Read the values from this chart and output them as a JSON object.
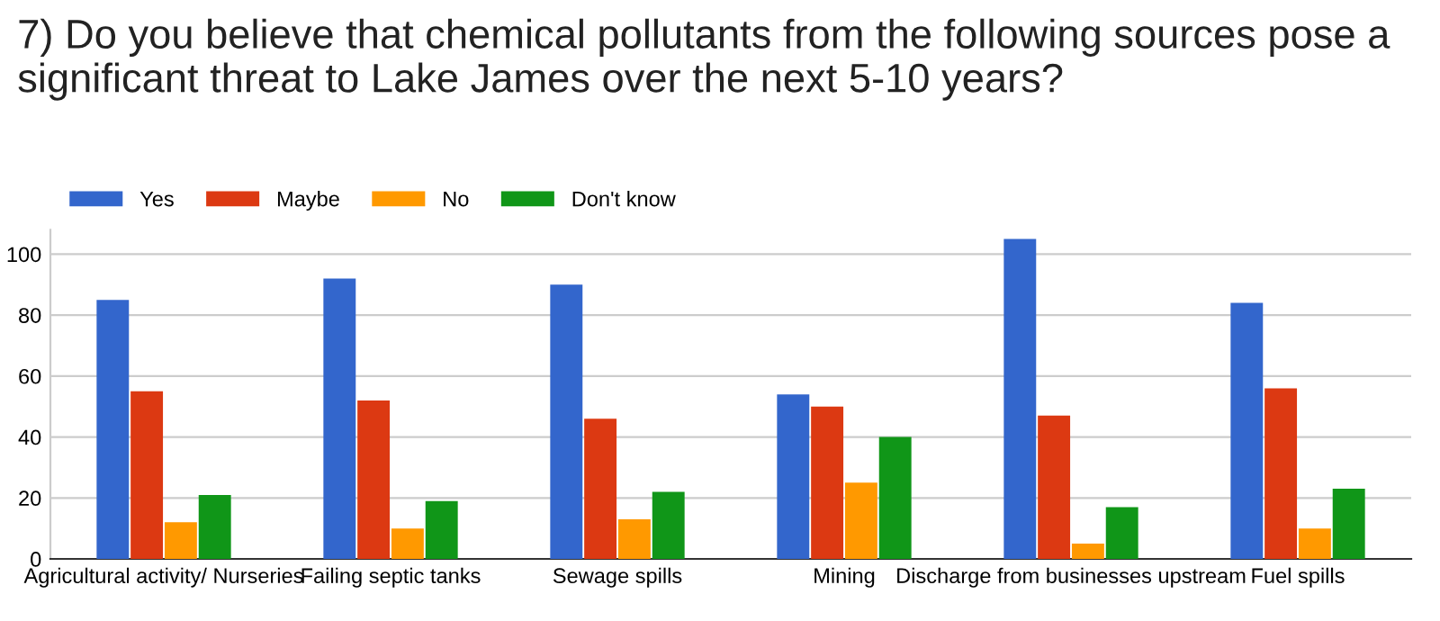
{
  "chart_data": {
    "type": "bar",
    "title": "7) Do you believe that chemical pollutants from the following sources pose a significant threat to Lake James over the next 5-10 years?",
    "categories": [
      "Agricultural activity/ Nurseries",
      "Failing septic tanks",
      "Sewage spills",
      "Mining",
      "Discharge from businesses upstream",
      "Fuel spills"
    ],
    "series": [
      {
        "name": "Yes",
        "color": "#3366cc",
        "values": [
          85,
          92,
          90,
          54,
          105,
          84
        ]
      },
      {
        "name": "Maybe",
        "color": "#dc3912",
        "values": [
          55,
          52,
          46,
          50,
          47,
          56
        ]
      },
      {
        "name": "No",
        "color": "#ff9900",
        "values": [
          12,
          10,
          13,
          25,
          5,
          10
        ]
      },
      {
        "name": "Don't know",
        "color": "#109618",
        "values": [
          21,
          19,
          22,
          40,
          17,
          23
        ]
      }
    ],
    "ylim": [
      0,
      108
    ],
    "yticks": [
      0,
      20,
      40,
      60,
      80,
      100
    ],
    "grid": "y",
    "legend": "top left"
  }
}
